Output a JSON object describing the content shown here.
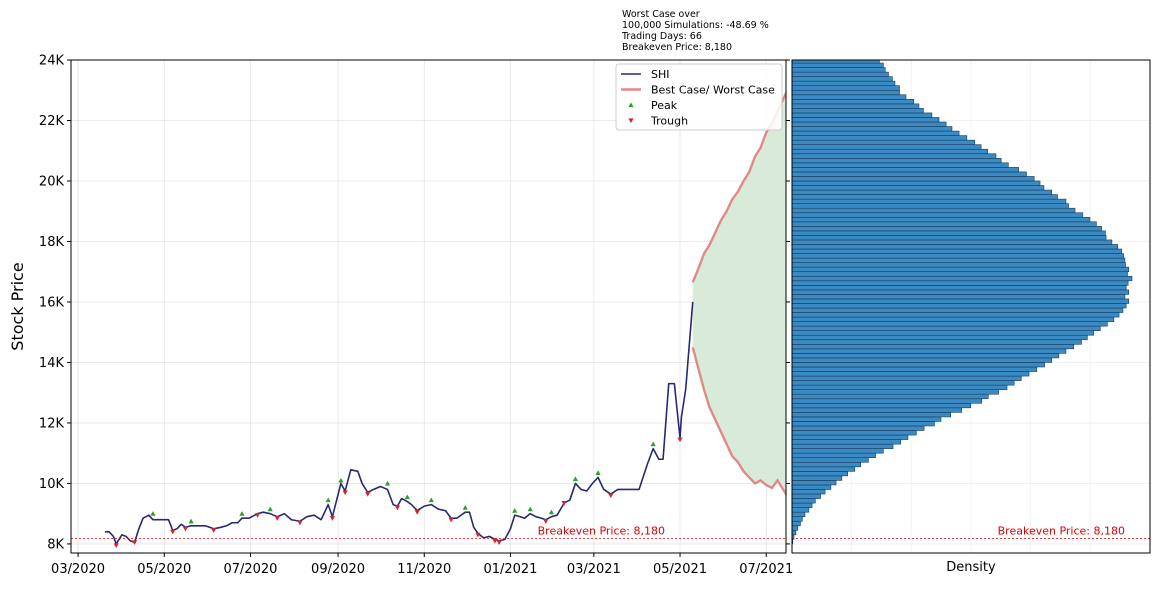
{
  "chart_data": [
    {
      "type": "line",
      "ylabel": "Stock Price",
      "ylim": [
        7700,
        24000
      ],
      "y_ticks": [
        "8K",
        "10K",
        "12K",
        "14K",
        "16K",
        "18K",
        "20K",
        "22K",
        "24K"
      ],
      "x_ticks": [
        "03/2020",
        "05/2020",
        "07/2020",
        "09/2020",
        "11/2020",
        "01/2021",
        "03/2021",
        "05/2021",
        "07/2021"
      ],
      "xlim": [
        "2020-02-25",
        "2021-07-15"
      ],
      "grid": true,
      "legend_position": "top-right",
      "annotation": [
        "Worst Case over",
        "100,000 Simulations: -48.69 %",
        "Trading Days: 66",
        "Breakeven Price: 8,180"
      ],
      "breakeven": {
        "label": "Breakeven Price: 8,180",
        "value": 8180,
        "color": "#e00000"
      },
      "series": [
        {
          "name": "SHI",
          "color": "#262a72",
          "points": [
            [
              "2020-03-20",
              8400
            ],
            [
              "2020-03-23",
              8400
            ],
            [
              "2020-03-26",
              8250
            ],
            [
              "2020-03-28",
              8000
            ],
            [
              "2020-04-01",
              8300
            ],
            [
              "2020-04-04",
              8250
            ],
            [
              "2020-04-07",
              8100
            ],
            [
              "2020-04-10",
              8050
            ],
            [
              "2020-04-13",
              8500
            ],
            [
              "2020-04-16",
              8850
            ],
            [
              "2020-04-20",
              8950
            ],
            [
              "2020-04-23",
              8800
            ],
            [
              "2020-04-27",
              8800
            ],
            [
              "2020-04-30",
              8800
            ],
            [
              "2020-05-04",
              8800
            ],
            [
              "2020-05-07",
              8450
            ],
            [
              "2020-05-10",
              8500
            ],
            [
              "2020-05-13",
              8650
            ],
            [
              "2020-05-16",
              8550
            ],
            [
              "2020-05-20",
              8600
            ],
            [
              "2020-05-25",
              8600
            ],
            [
              "2020-05-30",
              8600
            ],
            [
              "2020-06-05",
              8500
            ],
            [
              "2020-06-10",
              8550
            ],
            [
              "2020-06-14",
              8600
            ],
            [
              "2020-06-18",
              8700
            ],
            [
              "2020-06-22",
              8700
            ],
            [
              "2020-06-25",
              8850
            ],
            [
              "2020-06-30",
              8850
            ],
            [
              "2020-07-06",
              9000
            ],
            [
              "2020-07-10",
              9050
            ],
            [
              "2020-07-15",
              9000
            ],
            [
              "2020-07-20",
              8900
            ],
            [
              "2020-07-25",
              9000
            ],
            [
              "2020-07-30",
              8800
            ],
            [
              "2020-08-05",
              8750
            ],
            [
              "2020-08-10",
              8900
            ],
            [
              "2020-08-15",
              8950
            ],
            [
              "2020-08-20",
              8800
            ],
            [
              "2020-08-25",
              9300
            ],
            [
              "2020-08-28",
              8900
            ],
            [
              "2020-09-03",
              10000
            ],
            [
              "2020-09-06",
              9750
            ],
            [
              "2020-09-10",
              10450
            ],
            [
              "2020-09-15",
              10400
            ],
            [
              "2020-09-18",
              10000
            ],
            [
              "2020-09-22",
              9700
            ],
            [
              "2020-09-26",
              9800
            ],
            [
              "2020-10-01",
              9900
            ],
            [
              "2020-10-06",
              9800
            ],
            [
              "2020-10-10",
              9300
            ],
            [
              "2020-10-13",
              9250
            ],
            [
              "2020-10-16",
              9500
            ],
            [
              "2020-10-20",
              9400
            ],
            [
              "2020-10-23",
              9300
            ],
            [
              "2020-10-27",
              9100
            ],
            [
              "2020-11-01",
              9250
            ],
            [
              "2020-11-06",
              9300
            ],
            [
              "2020-11-11",
              9150
            ],
            [
              "2020-11-16",
              9100
            ],
            [
              "2020-11-20",
              8850
            ],
            [
              "2020-11-24",
              8850
            ],
            [
              "2020-11-30",
              9050
            ],
            [
              "2020-12-03",
              9050
            ],
            [
              "2020-12-06",
              8550
            ],
            [
              "2020-12-09",
              8350
            ],
            [
              "2020-12-13",
              8200
            ],
            [
              "2020-12-17",
              8250
            ],
            [
              "2020-12-21",
              8150
            ],
            [
              "2020-12-24",
              8100
            ],
            [
              "2020-12-28",
              8150
            ],
            [
              "2021-01-01",
              8500
            ],
            [
              "2021-01-04",
              8950
            ],
            [
              "2021-01-08",
              8900
            ],
            [
              "2021-01-11",
              8850
            ],
            [
              "2021-01-15",
              9000
            ],
            [
              "2021-01-19",
              8900
            ],
            [
              "2021-01-23",
              8850
            ],
            [
              "2021-01-26",
              8800
            ],
            [
              "2021-01-30",
              8900
            ],
            [
              "2021-02-03",
              8950
            ],
            [
              "2021-02-08",
              9350
            ],
            [
              "2021-02-12",
              9450
            ],
            [
              "2021-02-16",
              10000
            ],
            [
              "2021-02-20",
              9800
            ],
            [
              "2021-02-24",
              9750
            ],
            [
              "2021-02-28",
              10000
            ],
            [
              "2021-03-04",
              10200
            ],
            [
              "2021-03-08",
              9800
            ],
            [
              "2021-03-13",
              9650
            ],
            [
              "2021-03-18",
              9800
            ],
            [
              "2021-03-23",
              9800
            ],
            [
              "2021-04-02",
              9800
            ],
            [
              "2021-04-08",
              10650
            ],
            [
              "2021-04-12",
              11150
            ],
            [
              "2021-04-16",
              10800
            ],
            [
              "2021-04-19",
              10800
            ],
            [
              "2021-04-23",
              13300
            ],
            [
              "2021-04-27",
              13300
            ],
            [
              "2021-05-01",
              11500
            ],
            [
              "2021-05-02",
              12200
            ],
            [
              "2021-05-05",
              13100
            ],
            [
              "2021-05-10",
              16000
            ]
          ]
        },
        {
          "name": "Best Case/ Worst Case",
          "color": "#e08a86",
          "best": [
            [
              "2021-05-10",
              16650
            ],
            [
              "2021-05-14",
              17100
            ],
            [
              "2021-05-18",
              17600
            ],
            [
              "2021-05-22",
              17900
            ],
            [
              "2021-05-26",
              18300
            ],
            [
              "2021-05-30",
              18700
            ],
            [
              "2021-06-03",
              19000
            ],
            [
              "2021-06-07",
              19400
            ],
            [
              "2021-06-11",
              19650
            ],
            [
              "2021-06-15",
              20000
            ],
            [
              "2021-06-19",
              20300
            ],
            [
              "2021-06-23",
              20800
            ],
            [
              "2021-06-27",
              21100
            ],
            [
              "2021-07-01",
              21600
            ],
            [
              "2021-07-05",
              21900
            ],
            [
              "2021-07-09",
              22300
            ],
            [
              "2021-07-13",
              22700
            ],
            [
              "2021-07-17",
              23100
            ],
            [
              "2021-07-21",
              23550
            ],
            [
              "2021-07-25",
              24000
            ]
          ],
          "worst": [
            [
              "2021-05-10",
              14500
            ],
            [
              "2021-05-14",
              13800
            ],
            [
              "2021-05-18",
              13100
            ],
            [
              "2021-05-22",
              12500
            ],
            [
              "2021-05-26",
              12100
            ],
            [
              "2021-05-30",
              11700
            ],
            [
              "2021-06-03",
              11300
            ],
            [
              "2021-06-07",
              10900
            ],
            [
              "2021-06-11",
              10700
            ],
            [
              "2021-06-15",
              10400
            ],
            [
              "2021-06-19",
              10200
            ],
            [
              "2021-06-23",
              10000
            ],
            [
              "2021-06-27",
              10100
            ],
            [
              "2021-07-01",
              9950
            ],
            [
              "2021-07-05",
              9850
            ],
            [
              "2021-07-09",
              10100
            ],
            [
              "2021-07-13",
              9800
            ],
            [
              "2021-07-17",
              9500
            ],
            [
              "2021-07-21",
              9300
            ],
            [
              "2021-07-25",
              9150
            ],
            [
              "2021-07-29",
              9000
            ],
            [
              "2021-08-02",
              8900
            ],
            [
              "2021-08-06",
              8700
            ],
            [
              "2021-08-10",
              8550
            ],
            [
              "2021-08-14",
              8250
            ],
            [
              "2021-08-17",
              8500
            ],
            [
              "2021-08-21",
              8700
            ],
            [
              "2021-08-25",
              8450
            ],
            [
              "2021-08-29",
              8400
            ],
            [
              "2021-09-01",
              8350
            ],
            [
              "2021-09-05",
              8450
            ]
          ],
          "band_end": [
            "2021-09-05",
            24000
          ]
        }
      ],
      "peaks": {
        "name": "Peak",
        "color": "#2ca02c",
        "points": [
          [
            "2020-04-23",
            8900
          ],
          [
            "2020-05-20",
            8650
          ],
          [
            "2020-06-25",
            8900
          ],
          [
            "2020-07-15",
            9050
          ],
          [
            "2020-08-25",
            9350
          ],
          [
            "2020-09-03",
            10000
          ],
          [
            "2020-10-06",
            9900
          ],
          [
            "2020-10-20",
            9450
          ],
          [
            "2020-11-06",
            9350
          ],
          [
            "2020-11-30",
            9100
          ],
          [
            "2021-01-04",
            9000
          ],
          [
            "2021-01-15",
            9050
          ],
          [
            "2021-01-30",
            8950
          ],
          [
            "2021-02-16",
            10050
          ],
          [
            "2021-03-04",
            10250
          ],
          [
            "2021-04-12",
            11200
          ]
        ]
      },
      "troughs": {
        "name": "Trough",
        "color": "#d62728",
        "points": [
          [
            "2020-03-28",
            7950
          ],
          [
            "2020-04-10",
            8050
          ],
          [
            "2020-05-07",
            8400
          ],
          [
            "2020-05-16",
            8500
          ],
          [
            "2020-06-05",
            8450
          ],
          [
            "2020-07-06",
            8950
          ],
          [
            "2020-07-20",
            8850
          ],
          [
            "2020-08-05",
            8700
          ],
          [
            "2020-08-28",
            8850
          ],
          [
            "2020-09-06",
            9700
          ],
          [
            "2020-09-22",
            9650
          ],
          [
            "2020-10-13",
            9200
          ],
          [
            "2020-10-27",
            9050
          ],
          [
            "2020-11-20",
            8800
          ],
          [
            "2020-12-09",
            8300
          ],
          [
            "2020-12-21",
            8100
          ],
          [
            "2020-12-24",
            8050
          ],
          [
            "2021-01-26",
            8750
          ],
          [
            "2021-02-08",
            9350
          ],
          [
            "2021-03-13",
            9600
          ],
          [
            "2021-05-01",
            11450
          ]
        ]
      }
    },
    {
      "type": "bar",
      "orientation": "horizontal",
      "xlabel": "Density",
      "ylim": [
        7700,
        24000
      ],
      "color": "#3a8ac4",
      "edge_color": "#1a3a5c",
      "bin_start": 8000,
      "bin_width": 150,
      "breakeven": {
        "label": "Breakeven Price: 8,180",
        "value": 8180,
        "color": "#e00000"
      },
      "densities": [
        0.1,
        0.3,
        0.6,
        0.9,
        1.3,
        1.6,
        2.0,
        2.6,
        3.1,
        3.6,
        4.4,
        5.1,
        6.0,
        6.8,
        7.7,
        8.6,
        9.7,
        10.6,
        11.8,
        12.9,
        14.1,
        15.6,
        16.8,
        17.9,
        19.2,
        20.4,
        22.0,
        23.0,
        24.5,
        26.2,
        27.6,
        29.3,
        30.3,
        31.9,
        33.2,
        34.3,
        35.4,
        36.6,
        37.8,
        39.0,
        40.1,
        41.2,
        42.3,
        43.5,
        44.7,
        45.6,
        46.6,
        47.6,
        48.7,
        49.7,
        50.5,
        51.1,
        51.6,
        52.0,
        51.4,
        52.0,
        51.6,
        51.9,
        52.5,
        51.8,
        52.0,
        51.5,
        51.4,
        51.2,
        50.9,
        50.3,
        49.4,
        48.5,
        48.4,
        47.8,
        47.0,
        46.0,
        44.9,
        43.7,
        42.7,
        42.3,
        41.0,
        40.1,
        38.9,
        38.3,
        37.4,
        36.2,
        35.0,
        33.4,
        32.3,
        31.5,
        30.2,
        29.2,
        28.2,
        27.0,
        25.8,
        24.7,
        23.8,
        22.7,
        21.6,
        20.3,
        19.6,
        18.8,
        17.6,
        16.6,
        16.6,
        15.9,
        15.5,
        14.9,
        14.4,
        14.1,
        13.5,
        13.2,
        12.5,
        12.0
      ]
    }
  ]
}
